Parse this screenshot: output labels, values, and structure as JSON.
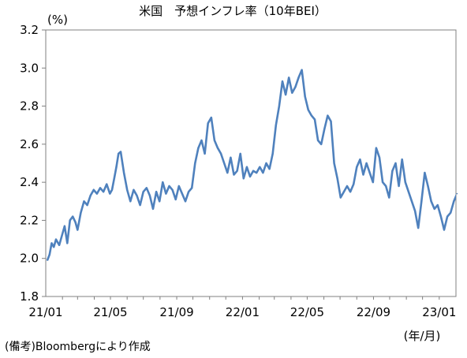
{
  "chart_data": {
    "type": "line",
    "title": "米国　予想インフレ率（10年BEI）",
    "unit_label": "(%)",
    "xlabel": "(年/月)",
    "source_note": "(備考)Bloombergにより作成",
    "ylim": [
      1.8,
      3.2
    ],
    "y_ticks": [
      1.8,
      2.0,
      2.2,
      2.4,
      2.6,
      2.8,
      3.0,
      3.2
    ],
    "y_tick_labels": [
      "1.8",
      "2.0",
      "2.2",
      "2.4",
      "2.6",
      "2.8",
      "3.0",
      "3.2"
    ],
    "x_range": [
      "2021-01",
      "2023-02"
    ],
    "x_tick_labels": [
      "21/01",
      "21/05",
      "21/09",
      "22/01",
      "22/05",
      "22/09",
      "23/01"
    ],
    "grid": false,
    "line_color": "#4f81bd",
    "series": [
      {
        "x": [
          "2021-01-04",
          "2021-01-08",
          "2021-01-12",
          "2021-01-16",
          "2021-01-20",
          "2021-01-26",
          "2021-02-01",
          "2021-02-05",
          "2021-02-10",
          "2021-02-15",
          "2021-02-20",
          "2021-02-25",
          "2021-03-01",
          "2021-03-07",
          "2021-03-13",
          "2021-03-19",
          "2021-03-25",
          "2021-03-31",
          "2021-04-06",
          "2021-04-12",
          "2021-04-18",
          "2021-04-24",
          "2021-04-30",
          "2021-05-04",
          "2021-05-08",
          "2021-05-12",
          "2021-05-16",
          "2021-05-20",
          "2021-05-26",
          "2021-06-01",
          "2021-06-07",
          "2021-06-13",
          "2021-06-19",
          "2021-06-25",
          "2021-07-01",
          "2021-07-07",
          "2021-07-13",
          "2021-07-19",
          "2021-07-25",
          "2021-07-31",
          "2021-08-06",
          "2021-08-12",
          "2021-08-18",
          "2021-08-24",
          "2021-08-30",
          "2021-09-05",
          "2021-09-11",
          "2021-09-17",
          "2021-09-23",
          "2021-09-29",
          "2021-10-05",
          "2021-10-11",
          "2021-10-17",
          "2021-10-23",
          "2021-10-29",
          "2021-11-04",
          "2021-11-10",
          "2021-11-16",
          "2021-11-22",
          "2021-11-28",
          "2021-12-04",
          "2021-12-10",
          "2021-12-16",
          "2021-12-22",
          "2021-12-28",
          "2022-01-03",
          "2022-01-09",
          "2022-01-15",
          "2022-01-21",
          "2022-01-27",
          "2022-02-02",
          "2022-02-08",
          "2022-02-14",
          "2022-02-20",
          "2022-02-26",
          "2022-03-04",
          "2022-03-10",
          "2022-03-16",
          "2022-03-22",
          "2022-03-28",
          "2022-04-03",
          "2022-04-09",
          "2022-04-15",
          "2022-04-21",
          "2022-04-27",
          "2022-05-03",
          "2022-05-09",
          "2022-05-15",
          "2022-05-21",
          "2022-05-27",
          "2022-06-02",
          "2022-06-08",
          "2022-06-14",
          "2022-06-20",
          "2022-06-26",
          "2022-07-02",
          "2022-07-08",
          "2022-07-14",
          "2022-07-20",
          "2022-07-26",
          "2022-08-01",
          "2022-08-07",
          "2022-08-13",
          "2022-08-19",
          "2022-08-25",
          "2022-08-31",
          "2022-09-06",
          "2022-09-12",
          "2022-09-18",
          "2022-09-24",
          "2022-09-30",
          "2022-10-06",
          "2022-10-12",
          "2022-10-18",
          "2022-10-24",
          "2022-10-30",
          "2022-11-05",
          "2022-11-11",
          "2022-11-17",
          "2022-11-23",
          "2022-11-29",
          "2022-12-05",
          "2022-12-11",
          "2022-12-17",
          "2022-12-23",
          "2022-12-29",
          "2023-01-04",
          "2023-01-10",
          "2023-01-16",
          "2023-01-22",
          "2023-01-28",
          "2023-02-03"
        ],
        "values": [
          1.99,
          2.02,
          2.08,
          2.06,
          2.1,
          2.07,
          2.13,
          2.17,
          2.08,
          2.2,
          2.22,
          2.19,
          2.15,
          2.24,
          2.3,
          2.28,
          2.33,
          2.36,
          2.34,
          2.37,
          2.35,
          2.39,
          2.34,
          2.36,
          2.42,
          2.48,
          2.55,
          2.56,
          2.45,
          2.36,
          2.3,
          2.36,
          2.33,
          2.28,
          2.35,
          2.37,
          2.33,
          2.26,
          2.35,
          2.3,
          2.4,
          2.34,
          2.38,
          2.36,
          2.31,
          2.38,
          2.34,
          2.3,
          2.35,
          2.37,
          2.5,
          2.58,
          2.62,
          2.55,
          2.71,
          2.74,
          2.62,
          2.58,
          2.55,
          2.5,
          2.45,
          2.53,
          2.44,
          2.46,
          2.55,
          2.42,
          2.48,
          2.43,
          2.46,
          2.45,
          2.48,
          2.45,
          2.5,
          2.47,
          2.55,
          2.7,
          2.8,
          2.93,
          2.86,
          2.95,
          2.87,
          2.9,
          2.95,
          2.99,
          2.85,
          2.78,
          2.75,
          2.73,
          2.62,
          2.6,
          2.68,
          2.75,
          2.72,
          2.5,
          2.42,
          2.32,
          2.35,
          2.38,
          2.35,
          2.39,
          2.48,
          2.52,
          2.44,
          2.5,
          2.45,
          2.4,
          2.58,
          2.53,
          2.4,
          2.38,
          2.32,
          2.46,
          2.5,
          2.38,
          2.52,
          2.4,
          2.35,
          2.3,
          2.25,
          2.16,
          2.3,
          2.45,
          2.38,
          2.3,
          2.26,
          2.28,
          2.22,
          2.15,
          2.22,
          2.24,
          2.3,
          2.34
        ]
      }
    ]
  }
}
